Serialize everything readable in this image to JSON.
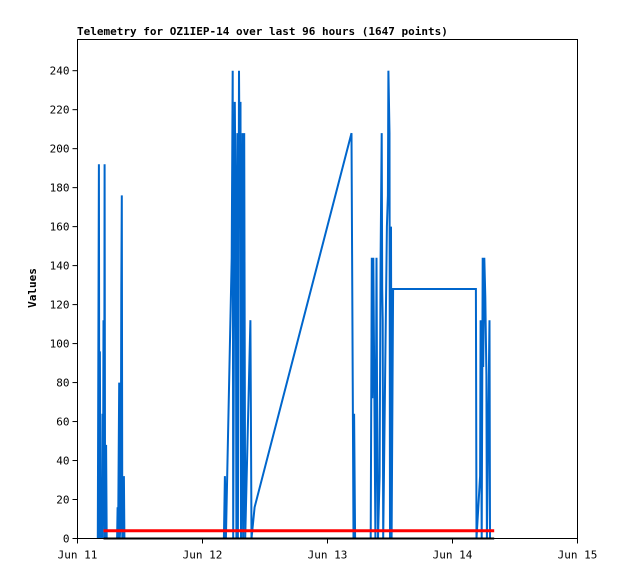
{
  "chart_data": {
    "type": "line",
    "title": "Telemetry for OZ1IEP-14 over last 96 hours (1647 points)",
    "xlabel": "",
    "ylabel": "Values",
    "x_ticks": [
      "Jun 11",
      "Jun 12",
      "Jun 13",
      "Jun 14",
      "Jun 15"
    ],
    "x_tick_hours": [
      0,
      24,
      48,
      72,
      96
    ],
    "ylim": [
      0,
      256
    ],
    "y_ticks": [
      0,
      20,
      40,
      60,
      80,
      100,
      120,
      140,
      160,
      180,
      200,
      220,
      240
    ],
    "xlim_hours": [
      0,
      96
    ],
    "grid": false,
    "colors": {
      "series_main": "#0066cc",
      "series_red": "#ff0000",
      "series_black": "#000000",
      "axis": "#000000"
    },
    "series": [
      {
        "values": [
          [
            3.9,
            0
          ],
          [
            4.1,
            192
          ],
          [
            4.2,
            0
          ],
          [
            4.3,
            96
          ],
          [
            4.4,
            0
          ],
          [
            4.6,
            8
          ],
          [
            4.7,
            0
          ],
          [
            4.8,
            64
          ],
          [
            4.9,
            16
          ],
          [
            5.0,
            112
          ],
          [
            5.1,
            0
          ],
          [
            5.2,
            192
          ],
          [
            5.3,
            0
          ],
          [
            5.5,
            48
          ],
          [
            5.6,
            0
          ],
          [
            7.6,
            0
          ],
          [
            7.7,
            16
          ],
          [
            7.8,
            0
          ],
          [
            8.0,
            80
          ],
          [
            8.1,
            0
          ],
          [
            8.3,
            8
          ],
          [
            8.4,
            128
          ],
          [
            8.5,
            176
          ],
          [
            8.6,
            0
          ],
          [
            8.9,
            32
          ],
          [
            9.0,
            0
          ],
          [
            28.1,
            0
          ],
          [
            28.3,
            32
          ],
          [
            28.5,
            0
          ],
          [
            29.6,
            144
          ],
          [
            29.8,
            240
          ],
          [
            29.9,
            0
          ],
          [
            30.2,
            224
          ],
          [
            30.4,
            160
          ],
          [
            30.5,
            0
          ],
          [
            30.7,
            208
          ],
          [
            30.8,
            0
          ],
          [
            31.0,
            240
          ],
          [
            31.1,
            200
          ],
          [
            31.3,
            224
          ],
          [
            31.4,
            0
          ],
          [
            31.7,
            208
          ],
          [
            31.8,
            0
          ],
          [
            32.0,
            208
          ],
          [
            32.2,
            0
          ],
          [
            33.2,
            112
          ],
          [
            33.3,
            64
          ],
          [
            33.4,
            0
          ],
          [
            34.0,
            16
          ],
          [
            52.6,
            208
          ],
          [
            53.0,
            0
          ],
          [
            53.1,
            64
          ],
          [
            53.3,
            0
          ],
          [
            56.3,
            0
          ],
          [
            56.5,
            144
          ],
          [
            56.6,
            72
          ],
          [
            56.8,
            144
          ],
          [
            57.0,
            72
          ],
          [
            57.2,
            0
          ],
          [
            57.4,
            144
          ],
          [
            57.5,
            80
          ],
          [
            57.7,
            0
          ],
          [
            58.0,
            32
          ],
          [
            58.2,
            144
          ],
          [
            58.4,
            208
          ],
          [
            58.5,
            128
          ],
          [
            58.6,
            112
          ],
          [
            58.7,
            0
          ],
          [
            59.4,
            160
          ],
          [
            59.6,
            176
          ],
          [
            59.7,
            240
          ],
          [
            59.9,
            208
          ],
          [
            60.0,
            0
          ],
          [
            60.2,
            160
          ],
          [
            60.3,
            0
          ],
          [
            60.6,
            128
          ],
          [
            76.5,
            128
          ],
          [
            76.6,
            0
          ],
          [
            77.3,
            32
          ],
          [
            77.4,
            112
          ],
          [
            77.5,
            64
          ],
          [
            77.6,
            0
          ],
          [
            77.8,
            144
          ],
          [
            77.9,
            88
          ],
          [
            78.1,
            144
          ],
          [
            78.3,
            124
          ],
          [
            78.5,
            84
          ],
          [
            78.6,
            0
          ],
          [
            79.1,
            112
          ],
          [
            79.2,
            0
          ]
        ]
      },
      {
        "values": [
          [
            5.0,
            4
          ],
          [
            80.0,
            4
          ]
        ]
      },
      {
        "values": [
          [
            5.0,
            0
          ],
          [
            80.0,
            0
          ]
        ]
      }
    ]
  }
}
